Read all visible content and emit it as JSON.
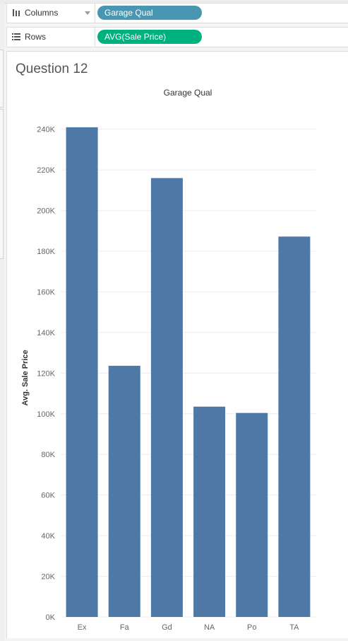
{
  "shelves": {
    "columns": {
      "label": "Columns",
      "pill": "Garage Qual",
      "pill_color": "#4996b2"
    },
    "rows": {
      "label": "Rows",
      "pill": "AVG(Sale Price)",
      "pill_color": "#00b180"
    }
  },
  "sheet": {
    "title": "Question 12"
  },
  "chart_data": {
    "type": "bar",
    "title": "Garage Qual",
    "xlabel": "",
    "ylabel": "Avg. Sale Price",
    "categories": [
      "Ex",
      "Fa",
      "Gd",
      "NA",
      "Po",
      "TA"
    ],
    "values": [
      241000,
      123600,
      216000,
      103500,
      100400,
      187200
    ],
    "ylim": [
      0,
      250000
    ],
    "yticks": [
      0,
      20000,
      40000,
      60000,
      80000,
      100000,
      120000,
      140000,
      160000,
      180000,
      200000,
      220000,
      240000
    ],
    "ytick_labels": [
      "0K",
      "20K",
      "40K",
      "60K",
      "80K",
      "100K",
      "120K",
      "140K",
      "160K",
      "180K",
      "200K",
      "220K",
      "240K"
    ],
    "bar_color": "#4e79a7",
    "grid": true
  }
}
